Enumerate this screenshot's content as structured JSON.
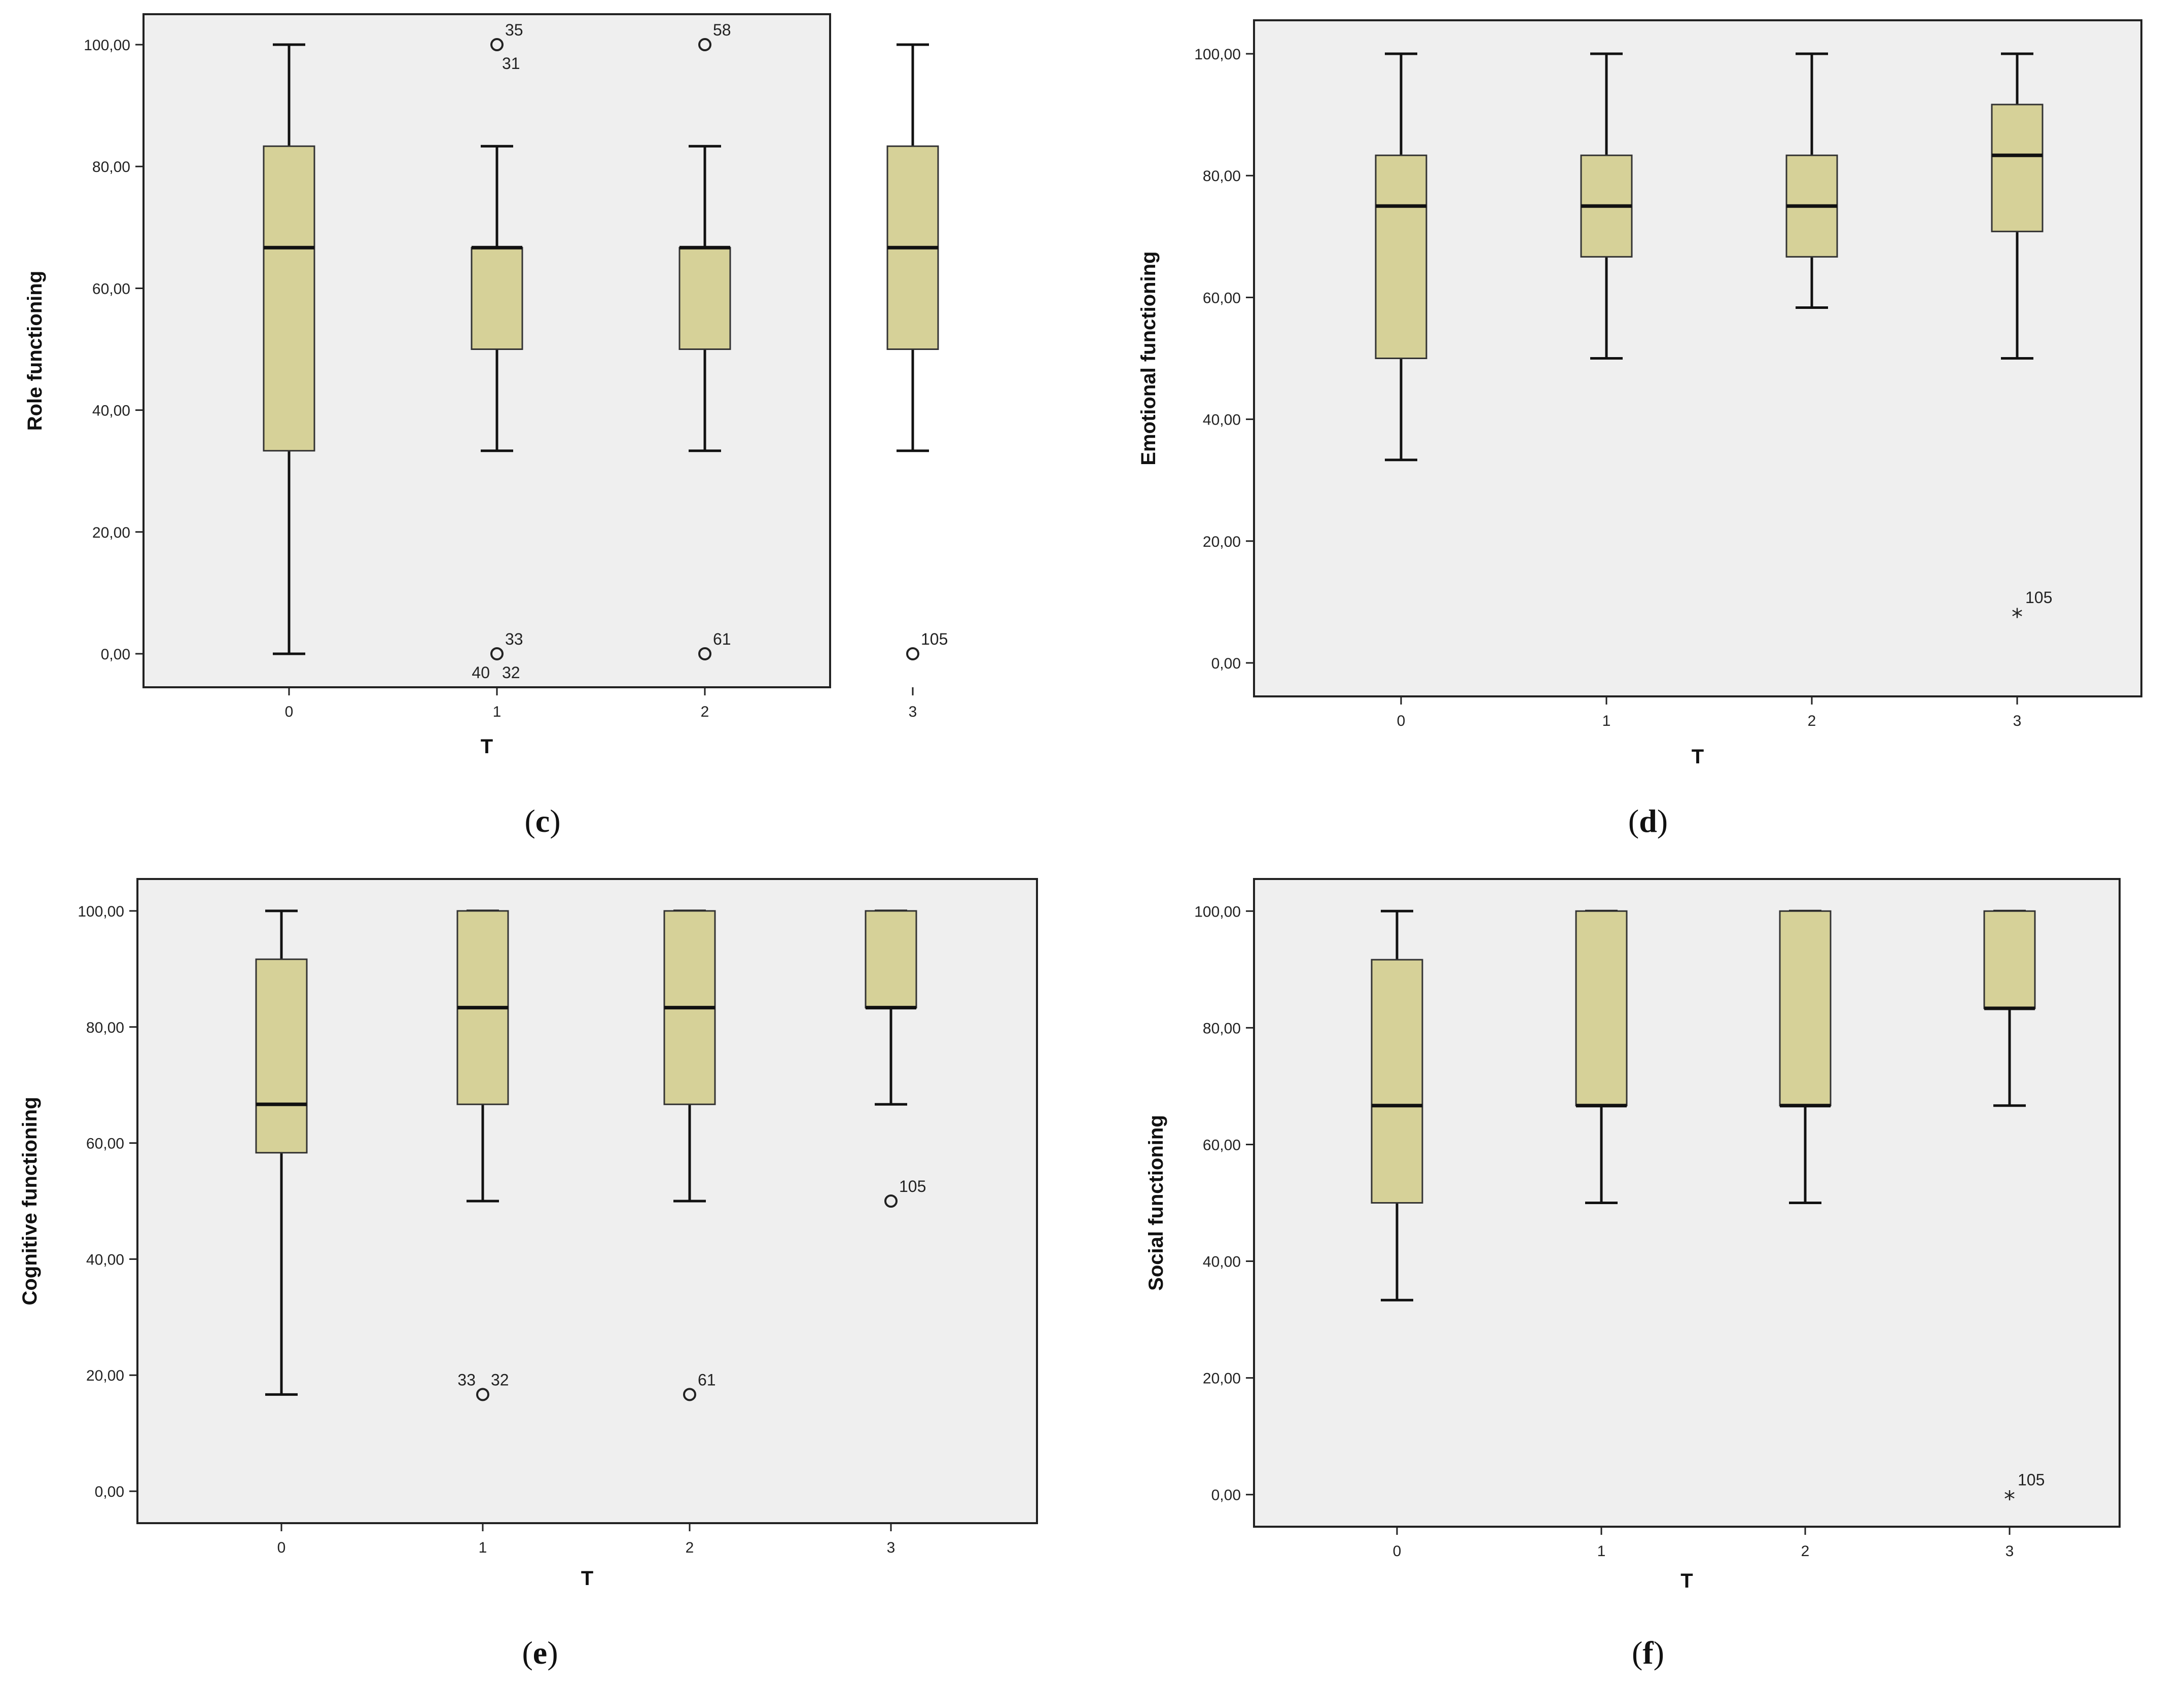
{
  "colors": {
    "box_fill": "#d6d198",
    "plot_background": "#efefef",
    "page_background": "#ffffff",
    "stroke": "#222222"
  },
  "chart_data": [
    {
      "type": "boxplot",
      "panel_label": "(c)",
      "label_open": "(",
      "label_letter": "c",
      "label_close": ")",
      "xlabel": "T",
      "ylabel": "Role functioning",
      "categories": [
        "0",
        "1",
        "2",
        "3"
      ],
      "ylim": [
        -5.5,
        105
      ],
      "yticks": [
        0,
        20,
        40,
        60,
        80,
        100
      ],
      "ytick_labels": [
        "0,00",
        "20,00",
        "40,00",
        "60,00",
        "80,00",
        "100,00"
      ],
      "boxes": [
        {
          "category": "0",
          "whisker_low": 0,
          "q1": 33.33,
          "median": 66.67,
          "q3": 83.33,
          "whisker_high": 100
        },
        {
          "category": "1",
          "whisker_low": 33.33,
          "q1": 50,
          "median": 66.67,
          "q3": 66.67,
          "whisker_high": 83.33
        },
        {
          "category": "2",
          "whisker_low": 33.33,
          "q1": 50,
          "median": 66.67,
          "q3": 66.67,
          "whisker_high": 83.33
        },
        {
          "category": "3",
          "whisker_low": 33.33,
          "q1": 50,
          "median": 66.67,
          "q3": 83.33,
          "whisker_high": 100
        }
      ],
      "outliers": [
        {
          "category": "1",
          "value": 100,
          "marker": "circle",
          "labels": [
            {
              "text": "35",
              "pos": "upper-right"
            },
            {
              "text": "31",
              "pos": "lower-right"
            }
          ]
        },
        {
          "category": "1",
          "value": 0,
          "marker": "circle",
          "labels": [
            {
              "text": "33",
              "pos": "upper-right"
            },
            {
              "text": "40",
              "pos": "lower-left"
            },
            {
              "text": "32",
              "pos": "lower-right"
            }
          ]
        },
        {
          "category": "2",
          "value": 100,
          "marker": "circle",
          "labels": [
            {
              "text": "58",
              "pos": "upper-right"
            }
          ]
        },
        {
          "category": "2",
          "value": 0,
          "marker": "circle",
          "labels": [
            {
              "text": "61",
              "pos": "upper-right"
            }
          ]
        },
        {
          "category": "3",
          "value": 0,
          "marker": "circle",
          "labels": [
            {
              "text": "105",
              "pos": "upper-right"
            }
          ]
        }
      ]
    },
    {
      "type": "boxplot",
      "panel_label": "(d)",
      "label_open": "(",
      "label_letter": "d",
      "label_close": ")",
      "xlabel": "T",
      "ylabel": "Emotional functioning",
      "categories": [
        "0",
        "1",
        "2",
        "3"
      ],
      "ylim": [
        -5.5,
        105.5
      ],
      "yticks": [
        0,
        20,
        40,
        60,
        80,
        100
      ],
      "ytick_labels": [
        "0,00",
        "20,00",
        "40,00",
        "60,00",
        "80,00",
        "100,00"
      ],
      "boxes": [
        {
          "category": "0",
          "whisker_low": 33.33,
          "q1": 50,
          "median": 75,
          "q3": 83.33,
          "whisker_high": 100
        },
        {
          "category": "1",
          "whisker_low": 50,
          "q1": 66.67,
          "median": 75,
          "q3": 83.33,
          "whisker_high": 100
        },
        {
          "category": "2",
          "whisker_low": 58.33,
          "q1": 66.67,
          "median": 75,
          "q3": 83.33,
          "whisker_high": 100
        },
        {
          "category": "3",
          "whisker_low": 50,
          "q1": 70.83,
          "median": 83.33,
          "q3": 91.67,
          "whisker_high": 100
        }
      ],
      "outliers": [
        {
          "category": "3",
          "value": 8.33,
          "marker": "star",
          "labels": [
            {
              "text": "105",
              "pos": "upper-right"
            }
          ]
        }
      ]
    },
    {
      "type": "boxplot",
      "panel_label": "(e)",
      "label_open": "(",
      "label_letter": "e",
      "label_close": ")",
      "xlabel": "T",
      "ylabel": "Cognitive functioning",
      "categories": [
        "0",
        "1",
        "2",
        "3"
      ],
      "ylim": [
        -5.5,
        105.5
      ],
      "yticks": [
        0,
        20,
        40,
        60,
        80,
        100
      ],
      "ytick_labels": [
        "0,00",
        "20,00",
        "40,00",
        "60,00",
        "80,00",
        "100,00"
      ],
      "boxes": [
        {
          "category": "0",
          "whisker_low": 16.67,
          "q1": 58.33,
          "median": 66.67,
          "q3": 91.67,
          "whisker_high": 100
        },
        {
          "category": "1",
          "whisker_low": 50,
          "q1": 66.67,
          "median": 83.33,
          "q3": 100,
          "whisker_high": 100
        },
        {
          "category": "2",
          "whisker_low": 50,
          "q1": 66.67,
          "median": 83.33,
          "q3": 100,
          "whisker_high": 100
        },
        {
          "category": "3",
          "whisker_low": 66.67,
          "q1": 83.33,
          "median": 83.33,
          "q3": 100,
          "whisker_high": 100
        }
      ],
      "outliers": [
        {
          "category": "1",
          "value": 16.67,
          "marker": "circle",
          "labels": [
            {
              "text": "33",
              "pos": "upper-left"
            },
            {
              "text": "32",
              "pos": "upper-right"
            }
          ]
        },
        {
          "category": "2",
          "value": 16.67,
          "marker": "circle",
          "labels": [
            {
              "text": "61",
              "pos": "upper-right"
            }
          ]
        },
        {
          "category": "3",
          "value": 50,
          "marker": "circle",
          "labels": [
            {
              "text": "105",
              "pos": "upper-right"
            }
          ]
        }
      ]
    },
    {
      "type": "boxplot",
      "panel_label": "(f)",
      "label_open": "(",
      "label_letter": "f",
      "label_close": ")",
      "xlabel": "T",
      "ylabel": "Social functioning",
      "categories": [
        "0",
        "1",
        "2",
        "3"
      ],
      "ylim": [
        -5.5,
        105.5
      ],
      "yticks": [
        0,
        20,
        40,
        60,
        80,
        100
      ],
      "ytick_labels": [
        "0,00",
        "20,00",
        "40,00",
        "60,00",
        "80,00",
        "100,00"
      ],
      "boxes": [
        {
          "category": "0",
          "whisker_low": 33.33,
          "q1": 50,
          "median": 66.67,
          "q3": 91.67,
          "whisker_high": 100
        },
        {
          "category": "1",
          "whisker_low": 50,
          "q1": 66.67,
          "median": 66.67,
          "q3": 100,
          "whisker_high": 100
        },
        {
          "category": "2",
          "whisker_low": 50,
          "q1": 66.67,
          "median": 66.67,
          "q3": 100,
          "whisker_high": 100
        },
        {
          "category": "3",
          "whisker_low": 66.67,
          "q1": 83.33,
          "median": 83.33,
          "q3": 100,
          "whisker_high": 100
        }
      ],
      "outliers": [
        {
          "category": "3",
          "value": 0,
          "marker": "star",
          "labels": [
            {
              "text": "105",
              "pos": "upper-right"
            }
          ]
        }
      ]
    }
  ]
}
